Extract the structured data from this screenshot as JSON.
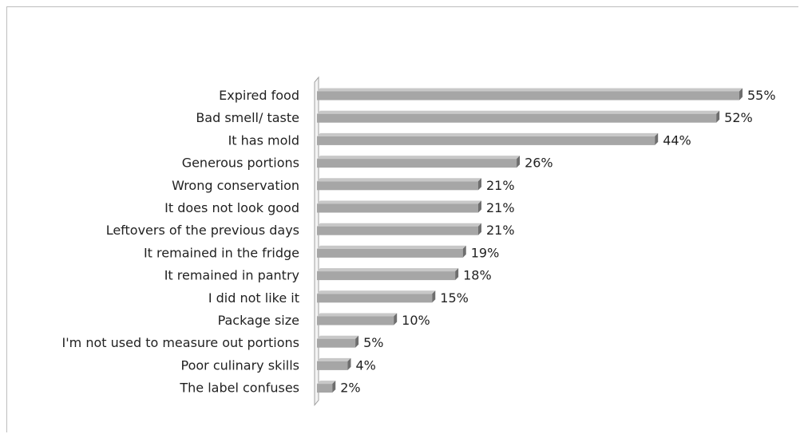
{
  "chart_data": {
    "type": "bar",
    "orientation": "horizontal",
    "title": "",
    "xlabel": "",
    "ylabel": "",
    "xlim": [
      0,
      55
    ],
    "grid": false,
    "legend": "none",
    "bar_color": "#a6a6a6",
    "bar_top_color": "#c8c8c8",
    "bar_end_color": "#6e6e6e",
    "axis_color": "#a0a0a0",
    "value_suffix": "%",
    "categories": [
      "Expired food",
      "Bad smell/ taste",
      "It has mold",
      "Generous portions",
      "Wrong conservation",
      "It does not look good",
      "Leftovers of the previous days",
      "It remained in the fridge",
      "It remained in pantry",
      "I did not like it",
      "Package size ",
      "I'm not used to measure out portions",
      "Poor culinary skills",
      "The label confuses"
    ],
    "values": [
      55,
      52,
      44,
      26,
      21,
      21,
      21,
      19,
      18,
      15,
      10,
      5,
      4,
      2
    ],
    "value_labels": [
      "55%",
      "52%",
      "44%",
      "26%",
      "21%",
      "21%",
      "21%",
      "19%",
      "18%",
      "15%",
      "10%",
      "5%",
      "4%",
      "2%"
    ]
  }
}
